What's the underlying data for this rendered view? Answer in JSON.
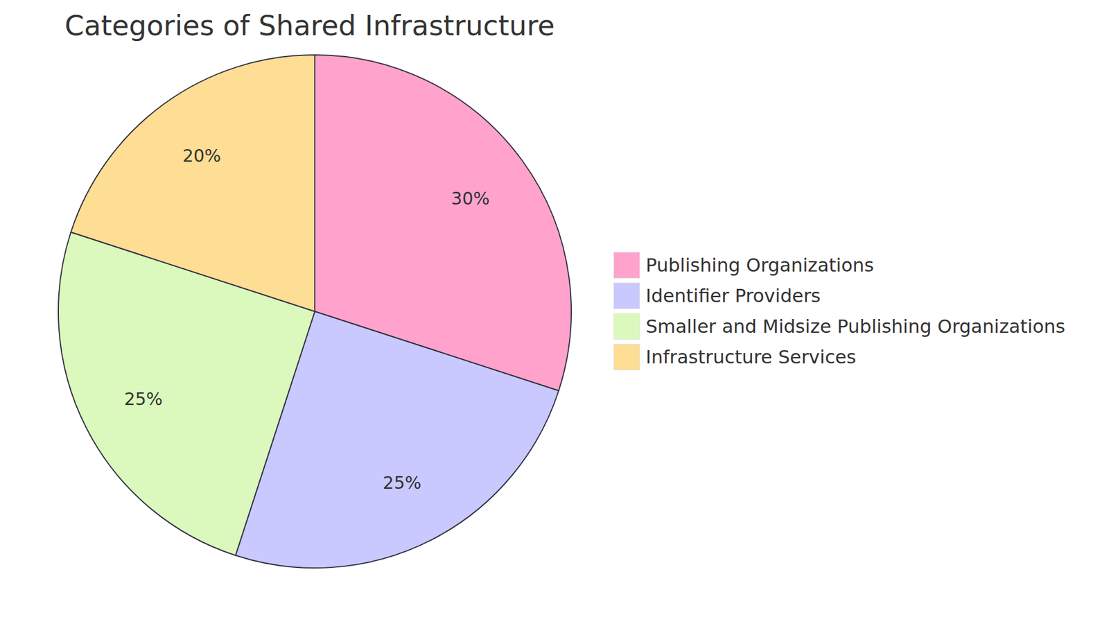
{
  "chart_data": {
    "type": "pie",
    "title": "Categories of Shared Infrastructure",
    "categories": [
      "Publishing Organizations",
      "Identifier Providers",
      "Smaller and Midsize Publishing Organizations",
      "Infrastructure Services"
    ],
    "values": [
      30,
      25,
      25,
      20
    ],
    "value_labels": [
      "30%",
      "25%",
      "25%",
      "20%"
    ],
    "colors": [
      "#ffa3cd",
      "#c9c9ff",
      "#dbf9bc",
      "#fedd94"
    ],
    "data_labels": true,
    "legend": "right"
  }
}
